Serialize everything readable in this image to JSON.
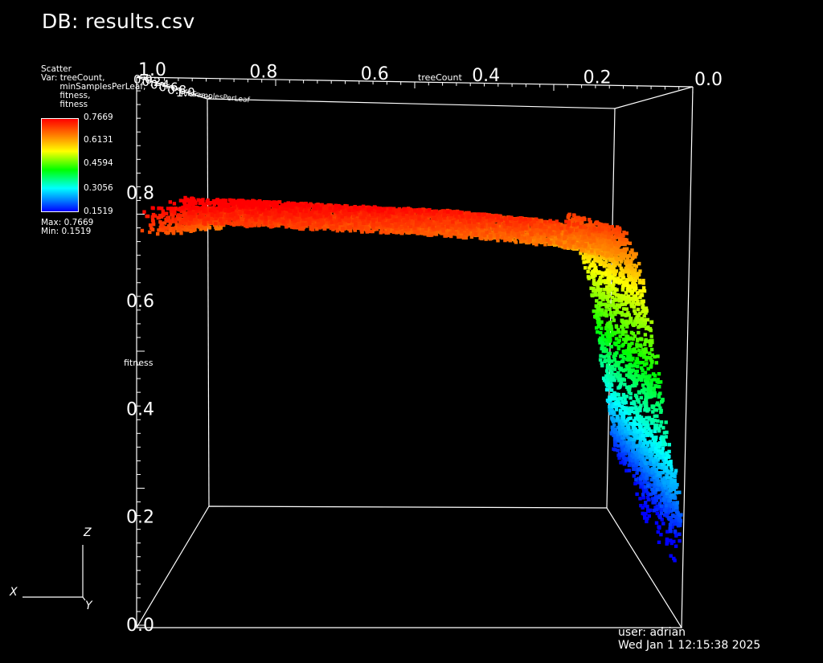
{
  "title": "DB: results.csv",
  "legend": {
    "plot_type": "Scatter",
    "var_lines": [
      "Var: treeCount,",
      "       minSamplesPerLeaf,",
      "       fitness,",
      "       fitness"
    ],
    "colorbar_ticks": [
      "0.7669",
      "0.6131",
      "0.4594",
      "0.3056",
      "0.1519"
    ],
    "max_label": "Max: 0.7669",
    "min_label": "Min: 0.1519"
  },
  "user": "user: adrian",
  "timestamp": "Wed Jan  1 12:15:38 2025",
  "triad": {
    "x": "X",
    "y": "Y",
    "z": "Z"
  },
  "chart_data": {
    "type": "scatter",
    "projection": "3d",
    "title": "DB: results.csv",
    "axes": {
      "x": {
        "label": "treeCount",
        "range": [
          0.0,
          1.0
        ],
        "ticks": [
          "0.0",
          "0.2",
          "0.4",
          "0.6",
          "0.8",
          "1.0"
        ]
      },
      "y": {
        "label": "minSamplesPerLeaf",
        "range": [
          0.0,
          1.0
        ],
        "ticks": [
          "0.0",
          "0.2",
          "0.4",
          "0.6",
          "0.8",
          "1.0"
        ]
      },
      "z": {
        "label": "fitness",
        "range": [
          0.0,
          1.0
        ],
        "ticks": [
          "0.0",
          "0.2",
          "0.4",
          "0.6",
          "0.8"
        ]
      }
    },
    "color_var": "fitness",
    "color_range": [
      0.1519,
      0.7669
    ],
    "point_profile": {
      "description": "fitness vs treeCount: near-flat plateau for treeCount above ~0.08, sharp drop toward treeCount 0",
      "treeCount": [
        0.0,
        0.02,
        0.04,
        0.06,
        0.08,
        0.1,
        0.15,
        0.2,
        0.3,
        0.4,
        0.5,
        0.6,
        0.7,
        0.8,
        0.9,
        1.0
      ],
      "fitness": [
        0.18,
        0.3,
        0.45,
        0.58,
        0.66,
        0.7,
        0.71,
        0.72,
        0.73,
        0.74,
        0.745,
        0.75,
        0.755,
        0.76,
        0.765,
        0.7669
      ]
    }
  }
}
